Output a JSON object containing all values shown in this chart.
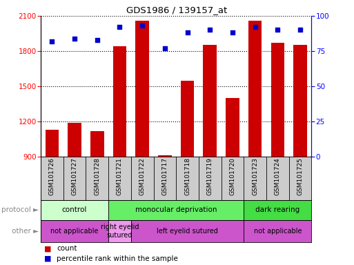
{
  "title": "GDS1986 / 139157_at",
  "samples": [
    "GSM101726",
    "GSM101727",
    "GSM101728",
    "GSM101721",
    "GSM101722",
    "GSM101717",
    "GSM101718",
    "GSM101719",
    "GSM101720",
    "GSM101723",
    "GSM101724",
    "GSM101725"
  ],
  "counts": [
    1130,
    1185,
    1115,
    1840,
    2060,
    910,
    1545,
    1855,
    1400,
    2060,
    1870,
    1850
  ],
  "percentile": [
    82,
    84,
    83,
    92,
    93,
    77,
    88,
    90,
    88,
    92,
    90,
    90
  ],
  "ylim_left": [
    900,
    2100
  ],
  "ylim_right": [
    0,
    100
  ],
  "yticks_left": [
    900,
    1200,
    1500,
    1800,
    2100
  ],
  "yticks_right": [
    0,
    25,
    50,
    75,
    100
  ],
  "protocol_groups": [
    {
      "label": "control",
      "start": 0,
      "end": 3,
      "color": "#ccffcc"
    },
    {
      "label": "monocular deprivation",
      "start": 3,
      "end": 9,
      "color": "#66ee66"
    },
    {
      "label": "dark rearing",
      "start": 9,
      "end": 12,
      "color": "#44dd44"
    }
  ],
  "other_groups": [
    {
      "label": "not applicable",
      "start": 0,
      "end": 3,
      "color": "#cc55cc"
    },
    {
      "label": "right eyelid\nsutured",
      "start": 3,
      "end": 4,
      "color": "#ee99ee"
    },
    {
      "label": "left eyelid sutured",
      "start": 4,
      "end": 9,
      "color": "#cc55cc"
    },
    {
      "label": "not applicable",
      "start": 9,
      "end": 12,
      "color": "#cc55cc"
    }
  ],
  "bar_color": "#cc0000",
  "dot_color": "#0000cc",
  "bar_bottom": 900,
  "xlabels_bg": "#cccccc",
  "fig_width": 5.13,
  "fig_height": 3.84,
  "dpi": 100
}
